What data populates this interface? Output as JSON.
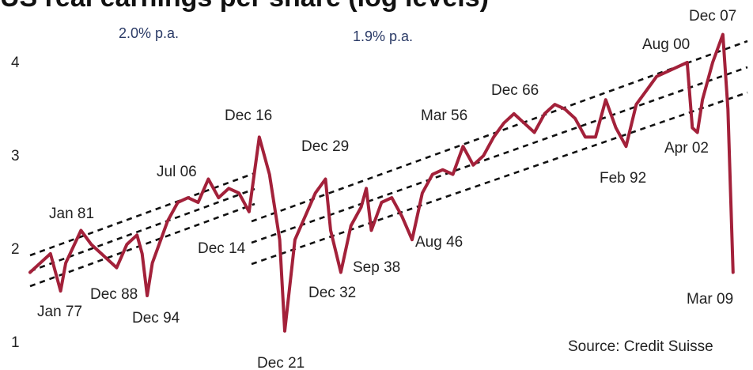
{
  "chart_data": {
    "type": "line",
    "title": "US real earnings per share (log levels)",
    "ylim": [
      1,
      4.5
    ],
    "y_ticks": [
      "1",
      "2",
      "3",
      "4"
    ],
    "y_tick_values": [
      1,
      2,
      3,
      4
    ],
    "xlim": [
      1871,
      2009.5
    ],
    "grid": false,
    "legend": "none",
    "series": [
      {
        "color": "#a3213a",
        "x": [
          1871,
          1873,
          1875,
          1877,
          1878,
          1881,
          1883,
          1885,
          1887,
          1888,
          1890,
          1892,
          1893,
          1894,
          1895,
          1898,
          1900,
          1902,
          1904,
          1906,
          1908,
          1910,
          1912,
          1914,
          1916,
          1918,
          1920,
          1921,
          1923,
          1925,
          1927,
          1929,
          1930,
          1932,
          1934,
          1936,
          1937,
          1938,
          1940,
          1942,
          1944,
          1946,
          1948,
          1950,
          1952,
          1954,
          1956,
          1958,
          1960,
          1962,
          1964,
          1966,
          1968,
          1970,
          1972,
          1974,
          1976,
          1978,
          1980,
          1982,
          1984,
          1986,
          1988,
          1990,
          1992,
          1994,
          1996,
          1998,
          2000,
          2001,
          2002,
          2003,
          2005,
          2007,
          2008,
          2009
        ],
        "values": [
          1.75,
          1.85,
          1.95,
          1.55,
          1.85,
          2.2,
          2.05,
          1.95,
          1.85,
          1.8,
          2.05,
          2.15,
          1.95,
          1.5,
          1.85,
          2.3,
          2.5,
          2.55,
          2.5,
          2.75,
          2.55,
          2.65,
          2.6,
          2.4,
          3.2,
          2.8,
          2.1,
          1.12,
          2.1,
          2.35,
          2.6,
          2.75,
          2.2,
          1.75,
          2.25,
          2.45,
          2.65,
          2.2,
          2.5,
          2.55,
          2.35,
          2.1,
          2.6,
          2.8,
          2.85,
          2.8,
          3.1,
          2.9,
          3.0,
          3.2,
          3.35,
          3.45,
          3.35,
          3.25,
          3.45,
          3.55,
          3.5,
          3.4,
          3.2,
          3.2,
          3.6,
          3.3,
          3.1,
          3.55,
          3.7,
          3.85,
          3.9,
          3.95,
          4.0,
          3.3,
          3.25,
          3.6,
          4.0,
          4.3,
          3.5,
          1.75
        ]
      }
    ],
    "annotations": [
      "Jan 81",
      "Jan 77",
      "Dec 88",
      "Dec 94",
      "Jul 06",
      "Dec 16",
      "Dec 14",
      "Dec 21",
      "Dec 29",
      "Dec 32",
      "Sep 38",
      "Aug 46",
      "Mar 56",
      "Dec 66",
      "Feb 92",
      "Aug 00",
      "Apr 02",
      "Dec 07",
      "Mar 09"
    ],
    "growth_labels": [
      "2.0% p.a.",
      "1.9% p.a."
    ],
    "source": "Source: Credit Suisse"
  }
}
